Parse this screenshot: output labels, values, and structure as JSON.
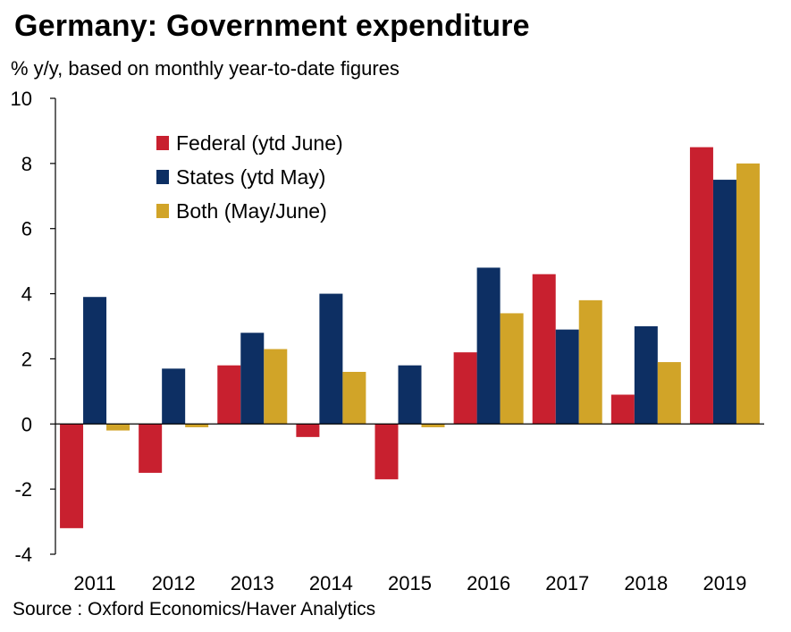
{
  "title": "Germany: Government expenditure",
  "subtitle": "% y/y, based on monthly year-to-date figures",
  "source": "Source : Oxford Economics/Haver Analytics",
  "chart_data": {
    "type": "bar",
    "title": "Germany: Government expenditure",
    "ylabel": "% y/y, based on monthly year-to-date figures",
    "xlabel": "",
    "categories": [
      "2011",
      "2012",
      "2013",
      "2014",
      "2015",
      "2016",
      "2017",
      "2018",
      "2019"
    ],
    "series": [
      {
        "name": "Federal (ytd June)",
        "color": "#c8202f",
        "values": [
          -3.2,
          -1.5,
          1.8,
          -0.4,
          -1.7,
          2.2,
          4.6,
          0.9,
          8.5
        ]
      },
      {
        "name": "States (ytd May)",
        "color": "#0d2f63",
        "values": [
          3.9,
          1.7,
          2.8,
          4.0,
          1.8,
          4.8,
          2.9,
          3.0,
          7.5
        ]
      },
      {
        "name": "Both (May/June)",
        "color": "#d1a428",
        "values": [
          -0.2,
          -0.1,
          2.3,
          1.6,
          -0.1,
          3.4,
          3.8,
          1.9,
          8.0
        ]
      }
    ],
    "ylim": [
      -4,
      10
    ],
    "yticks": [
      -4,
      -2,
      0,
      2,
      4,
      6,
      8,
      10
    ],
    "grid": false,
    "legend": "top-left"
  }
}
